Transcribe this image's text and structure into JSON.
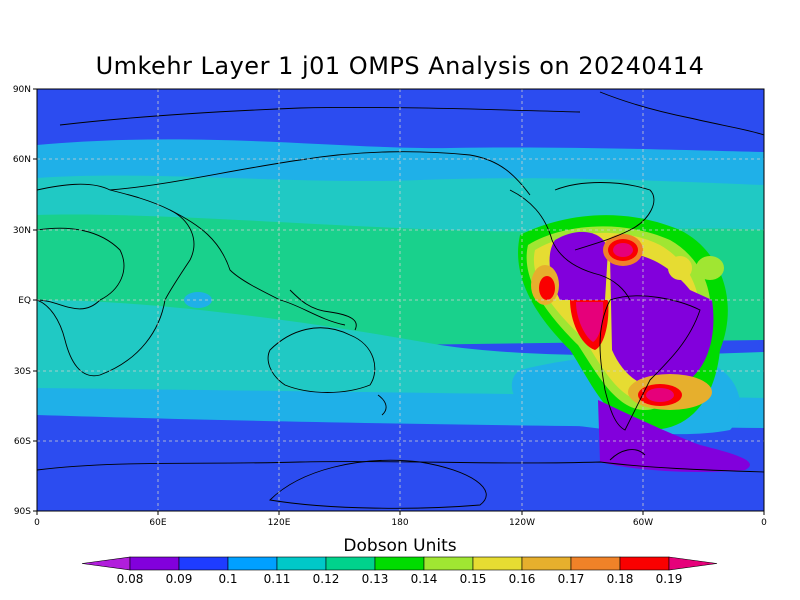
{
  "title": "Umkehr Layer 1 j01 OMPS Analysis on 20240414",
  "lat_labels": [
    "90N",
    "60N",
    "30N",
    "EQ",
    "30S",
    "60S",
    "90S"
  ],
  "lon_labels": [
    "0",
    "60E",
    "120E",
    "180",
    "120W",
    "60W",
    "0"
  ],
  "colorbar": {
    "title": "Dobson Units",
    "labels": [
      "0.08",
      "0.09",
      "0.1",
      "0.11",
      "0.12",
      "0.13",
      "0.14",
      "0.15",
      "0.16",
      "0.17",
      "0.18",
      "0.19"
    ],
    "colors": [
      "#b11edc",
      "#8200dc",
      "#1e3cff",
      "#00a0ff",
      "#00c8c8",
      "#00d28c",
      "#00dc00",
      "#a0e632",
      "#e6dc32",
      "#e6af2d",
      "#f08228",
      "#fa0000",
      "#e6007a"
    ]
  }
}
